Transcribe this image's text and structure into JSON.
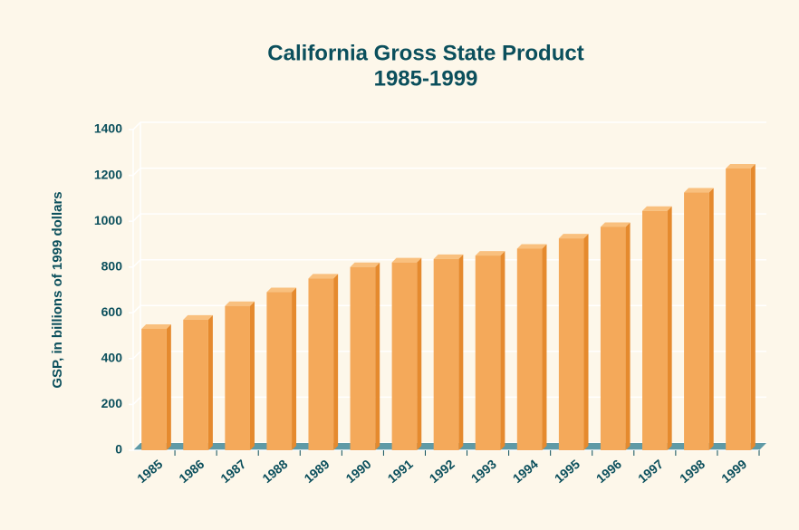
{
  "chart_data": {
    "type": "bar",
    "title": "California Gross State Product",
    "subtitle": "1985-1999",
    "y_label": "GSP, in billions of 1999 dollars",
    "categories": [
      "1985",
      "1986",
      "1987",
      "1988",
      "1989",
      "1990",
      "1991",
      "1992",
      "1993",
      "1994",
      "1995",
      "1996",
      "1997",
      "1998",
      "1999"
    ],
    "values": [
      530,
      570,
      630,
      690,
      750,
      800,
      820,
      835,
      850,
      880,
      925,
      975,
      1045,
      1125,
      1230
    ],
    "color": "#f4a95a",
    "ylim": [
      0,
      1400
    ],
    "yticks": [
      0,
      200,
      400,
      600,
      800,
      1000,
      1200,
      1400
    ],
    "grid": true
  }
}
